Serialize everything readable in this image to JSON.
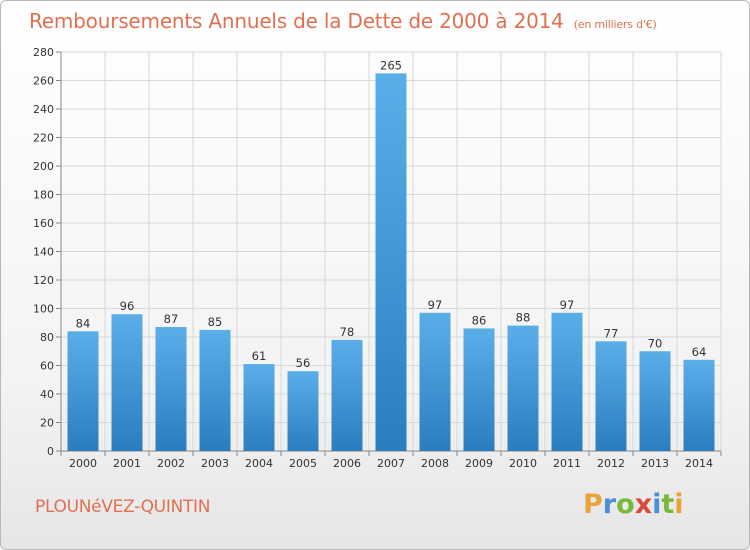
{
  "header": {
    "title": "Remboursements Annuels de la Dette de 2000 à 2014",
    "unit": "(en milliers d'€)"
  },
  "footer": {
    "commune": "PLOUNéVEZ-QUINTIN",
    "logo_letters": [
      "P",
      "r",
      "o",
      "x",
      "i",
      "t",
      "i"
    ],
    "logo_colors": [
      "#e8a33a",
      "#4a8fd8",
      "#7ab83a",
      "#d84a3a",
      "#4a8fd8",
      "#7ab83a",
      "#e8a33a"
    ]
  },
  "chart_data": {
    "type": "bar",
    "categories": [
      "2000",
      "2001",
      "2002",
      "2003",
      "2004",
      "2005",
      "2006",
      "2007",
      "2008",
      "2009",
      "2010",
      "2011",
      "2012",
      "2013",
      "2014"
    ],
    "values": [
      84,
      96,
      87,
      85,
      61,
      56,
      78,
      265,
      97,
      86,
      88,
      97,
      77,
      70,
      64
    ],
    "title": "Remboursements Annuels de la Dette de 2000 à 2014",
    "ylim": [
      0,
      280
    ],
    "yticks": [
      0,
      20,
      40,
      60,
      80,
      100,
      120,
      140,
      160,
      180,
      200,
      220,
      240,
      260,
      280
    ],
    "grid": true,
    "bar_color_light": "#5aaee8",
    "bar_color_dark": "#2a7ec0"
  }
}
